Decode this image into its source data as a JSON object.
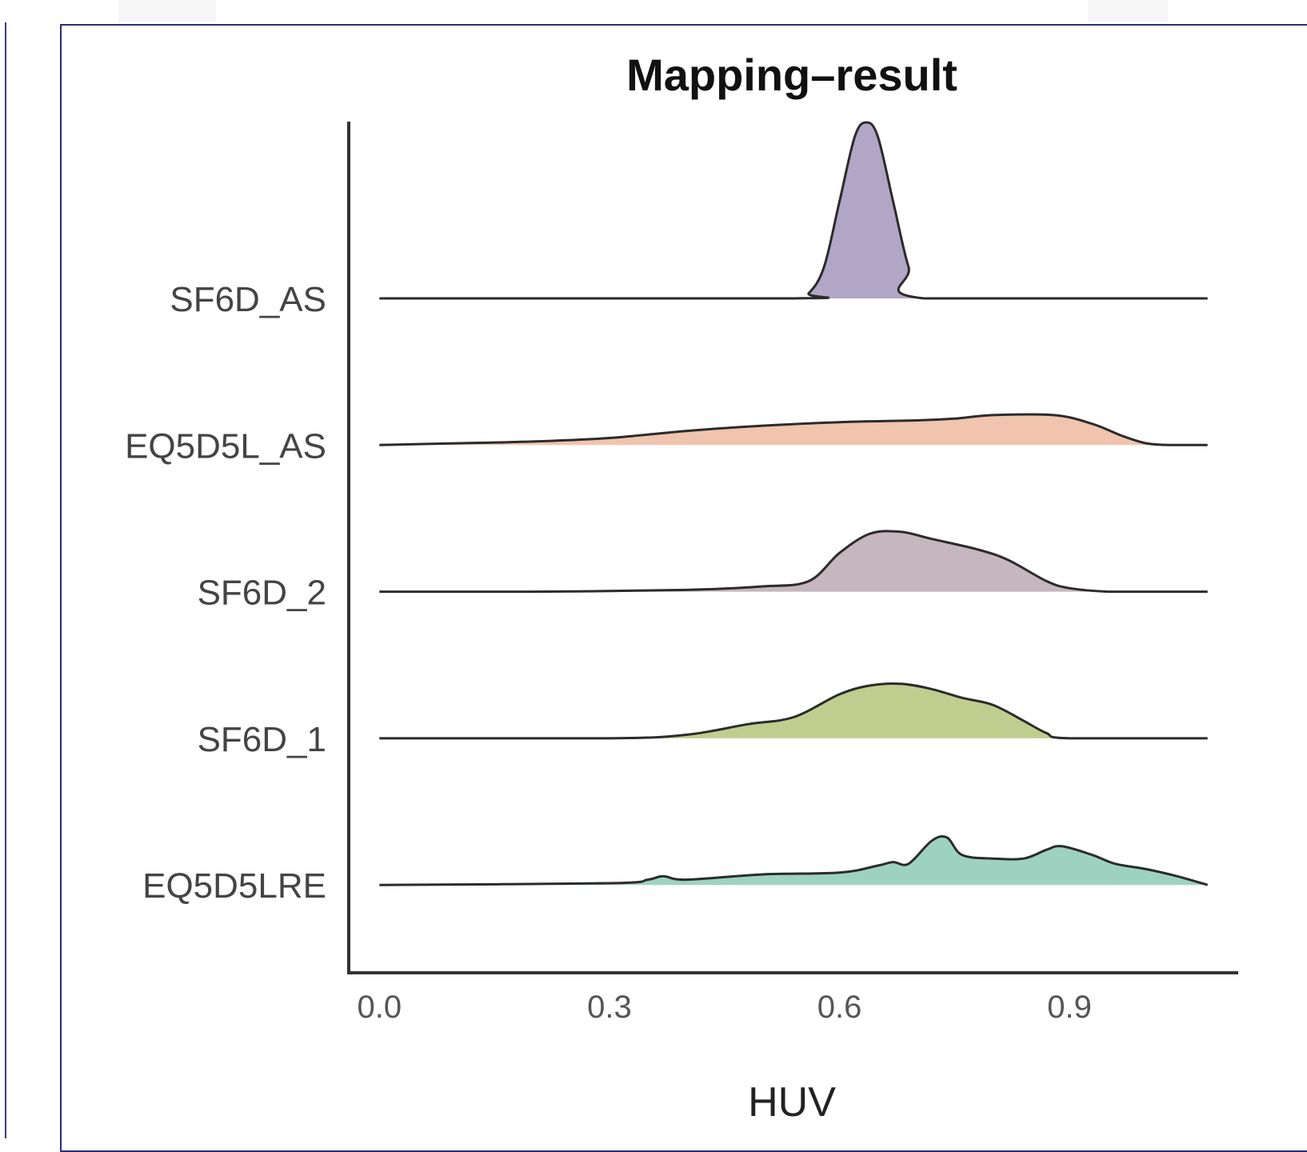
{
  "chart_data": {
    "type": "ridgeline",
    "title": "Mapping–result",
    "xlabel": "HUV",
    "ylabel": "",
    "xlim": [
      -0.04,
      1.12
    ],
    "x_ticks": [
      0.0,
      0.3,
      0.6,
      0.9
    ],
    "x_tick_labels": [
      "0.0",
      "0.3",
      "0.6",
      "0.9"
    ],
    "x_range": [
      0.0,
      1.08
    ],
    "grid": false,
    "legend": "none",
    "series": [
      {
        "name": "SF6D_AS",
        "color": "#a596bc",
        "x": [
          0.0,
          0.54,
          0.56,
          0.58,
          0.6,
          0.62,
          0.635,
          0.65,
          0.67,
          0.69,
          0.71,
          1.08
        ],
        "density": [
          0,
          0,
          0.03,
          0.18,
          0.55,
          0.92,
          1.0,
          0.92,
          0.55,
          0.18,
          0,
          0
        ]
      },
      {
        "name": "EQ5D5L_AS",
        "color": "#eebaa0",
        "x": [
          0.0,
          0.1,
          0.2,
          0.3,
          0.4,
          0.5,
          0.6,
          0.7,
          0.75,
          0.8,
          0.88,
          0.93,
          0.97,
          1.0,
          1.03,
          1.08
        ],
        "density": [
          0,
          0.01,
          0.02,
          0.04,
          0.08,
          0.11,
          0.13,
          0.14,
          0.15,
          0.17,
          0.17,
          0.12,
          0.05,
          0.01,
          0.0,
          0
        ]
      },
      {
        "name": "SF6D_2",
        "color": "#bca9b1",
        "x": [
          0.0,
          0.2,
          0.4,
          0.5,
          0.56,
          0.6,
          0.64,
          0.68,
          0.72,
          0.78,
          0.82,
          0.87,
          0.9,
          0.95,
          1.0,
          1.08
        ],
        "density": [
          0,
          0.0,
          0.01,
          0.03,
          0.06,
          0.22,
          0.33,
          0.34,
          0.3,
          0.24,
          0.18,
          0.06,
          0.02,
          0.0,
          0.0,
          0
        ]
      },
      {
        "name": "SF6D_1",
        "color": "#b6c47b",
        "x": [
          0.0,
          0.3,
          0.4,
          0.48,
          0.54,
          0.6,
          0.64,
          0.68,
          0.72,
          0.76,
          0.8,
          0.84,
          0.87,
          0.9,
          1.08
        ],
        "density": [
          0,
          0.0,
          0.02,
          0.08,
          0.12,
          0.25,
          0.3,
          0.31,
          0.28,
          0.23,
          0.19,
          0.1,
          0.03,
          0.0,
          0
        ]
      },
      {
        "name": "EQ5D5LRE",
        "color": "#8ccab6",
        "x": [
          0.0,
          0.3,
          0.35,
          0.37,
          0.4,
          0.5,
          0.6,
          0.65,
          0.67,
          0.69,
          0.72,
          0.74,
          0.76,
          0.8,
          0.84,
          0.87,
          0.89,
          0.93,
          0.96,
          1.0,
          1.04,
          1.08
        ],
        "density": [
          0,
          0.01,
          0.03,
          0.05,
          0.03,
          0.06,
          0.07,
          0.11,
          0.13,
          0.12,
          0.25,
          0.27,
          0.17,
          0.15,
          0.15,
          0.2,
          0.22,
          0.17,
          0.12,
          0.09,
          0.05,
          0
        ]
      }
    ]
  }
}
